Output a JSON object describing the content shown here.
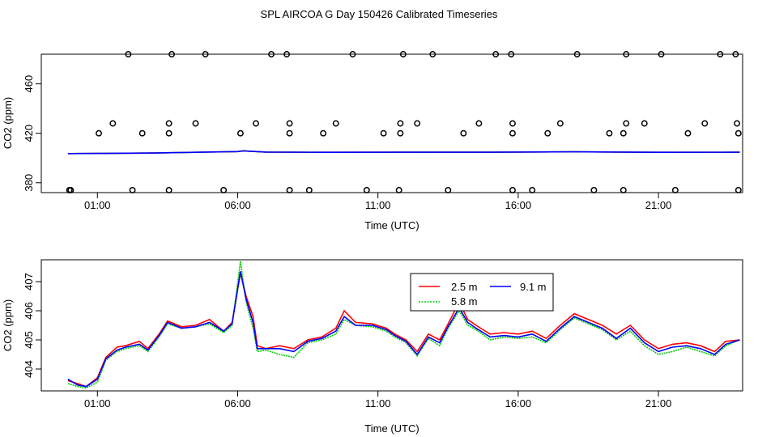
{
  "title": "SPL AIRCOA G  Day 150426  Calibrated Timeseries",
  "colors": {
    "axis": "#000000",
    "red": "#ff0000",
    "green": "#00cc00",
    "blue": "#0000ff"
  },
  "chart_data": [
    {
      "type": "scatter",
      "xlabel": "Time (UTC)",
      "ylabel": "CO2 (ppm)",
      "x_ticks": [
        "01:00",
        "06:00",
        "11:00",
        "16:00",
        "21:00"
      ],
      "x_tick_hours": [
        1,
        6,
        11,
        16,
        21
      ],
      "xlim": [
        -1.0,
        24.0
      ],
      "y_ticks": [
        380,
        420,
        460
      ],
      "ylim": [
        372,
        484
      ],
      "circles": [
        [
          0.0,
          374
        ],
        [
          0.05,
          374
        ],
        [
          1.05,
          420
        ],
        [
          1.55,
          428
        ],
        [
          2.1,
          484
        ],
        [
          2.25,
          374
        ],
        [
          2.6,
          420
        ],
        [
          3.55,
          428
        ],
        [
          3.55,
          420
        ],
        [
          3.55,
          374
        ],
        [
          3.65,
          484
        ],
        [
          4.5,
          428
        ],
        [
          4.85,
          484
        ],
        [
          5.5,
          374
        ],
        [
          6.1,
          420
        ],
        [
          6.65,
          428
        ],
        [
          7.2,
          484
        ],
        [
          7.75,
          484
        ],
        [
          7.85,
          428
        ],
        [
          7.85,
          420
        ],
        [
          7.85,
          374
        ],
        [
          8.55,
          374
        ],
        [
          9.05,
          420
        ],
        [
          9.5,
          428
        ],
        [
          10.1,
          484
        ],
        [
          10.6,
          374
        ],
        [
          11.2,
          420
        ],
        [
          11.8,
          428
        ],
        [
          11.8,
          420
        ],
        [
          11.75,
          374
        ],
        [
          11.9,
          484
        ],
        [
          12.4,
          428
        ],
        [
          12.95,
          484
        ],
        [
          13.5,
          374
        ],
        [
          14.05,
          420
        ],
        [
          14.6,
          428
        ],
        [
          15.2,
          484
        ],
        [
          15.75,
          484
        ],
        [
          15.8,
          428
        ],
        [
          15.8,
          420
        ],
        [
          15.8,
          374
        ],
        [
          16.5,
          374
        ],
        [
          17.05,
          420
        ],
        [
          17.5,
          428
        ],
        [
          18.1,
          484
        ],
        [
          18.7,
          374
        ],
        [
          19.25,
          420
        ],
        [
          19.75,
          420
        ],
        [
          19.75,
          374
        ],
        [
          19.85,
          428
        ],
        [
          19.85,
          484
        ],
        [
          20.5,
          428
        ],
        [
          21.1,
          484
        ],
        [
          21.6,
          374
        ],
        [
          22.05,
          420
        ],
        [
          22.65,
          428
        ],
        [
          23.2,
          484
        ],
        [
          23.75,
          484
        ],
        [
          23.8,
          428
        ],
        [
          23.85,
          420
        ],
        [
          23.85,
          374
        ]
      ],
      "series": [
        {
          "color": "#ff0000",
          "points": [
            [
              -0.05,
              403.6
            ],
            [
              1.0,
              403.7
            ],
            [
              3.0,
              404.0
            ],
            [
              6.0,
              405.2
            ],
            [
              6.2,
              405.8
            ],
            [
              7.0,
              404.8
            ],
            [
              9.0,
              404.6
            ],
            [
              12.0,
              404.7
            ],
            [
              15.0,
              404.7
            ],
            [
              18.0,
              405.0
            ],
            [
              21.0,
              404.6
            ],
            [
              23.9,
              404.7
            ]
          ]
        },
        {
          "color": "#00cc00",
          "points": [
            [
              -0.05,
              403.6
            ],
            [
              1.0,
              403.7
            ],
            [
              3.0,
              404.0
            ],
            [
              6.0,
              405.2
            ],
            [
              6.2,
              405.8
            ],
            [
              7.0,
              404.8
            ],
            [
              9.0,
              404.6
            ],
            [
              12.0,
              404.7
            ],
            [
              15.0,
              404.7
            ],
            [
              18.0,
              405.0
            ],
            [
              21.0,
              404.6
            ],
            [
              23.9,
              404.7
            ]
          ]
        },
        {
          "color": "#0000ff",
          "points": [
            [
              -0.05,
              403.6
            ],
            [
              1.0,
              403.7
            ],
            [
              3.0,
              404.0
            ],
            [
              6.0,
              405.2
            ],
            [
              6.2,
              405.8
            ],
            [
              7.0,
              404.8
            ],
            [
              9.0,
              404.6
            ],
            [
              12.0,
              404.7
            ],
            [
              15.0,
              404.7
            ],
            [
              18.0,
              405.0
            ],
            [
              21.0,
              404.6
            ],
            [
              23.9,
              404.7
            ]
          ]
        }
      ]
    },
    {
      "type": "line",
      "xlabel": "Time (UTC)",
      "ylabel": "CO2 (ppm)",
      "x_ticks": [
        "01:00",
        "06:00",
        "11:00",
        "16:00",
        "21:00"
      ],
      "x_tick_hours": [
        1,
        6,
        11,
        16,
        21
      ],
      "xlim": [
        -1.0,
        24.0
      ],
      "y_ticks": [
        404,
        405,
        406,
        407
      ],
      "ylim": [
        403.25,
        407.75
      ],
      "legend": {
        "placement": "top-center"
      },
      "series": [
        {
          "name": "2.5 m",
          "color": "#ff0000",
          "points": [
            [
              -0.05,
              403.6
            ],
            [
              0.3,
              403.5
            ],
            [
              0.6,
              403.4
            ],
            [
              1.0,
              403.7
            ],
            [
              1.3,
              404.4
            ],
            [
              1.7,
              404.75
            ],
            [
              2.0,
              404.8
            ],
            [
              2.5,
              404.95
            ],
            [
              2.8,
              404.7
            ],
            [
              3.2,
              405.2
            ],
            [
              3.5,
              405.65
            ],
            [
              4.0,
              405.45
            ],
            [
              4.5,
              405.5
            ],
            [
              5.0,
              405.7
            ],
            [
              5.5,
              405.3
            ],
            [
              5.8,
              405.6
            ],
            [
              6.1,
              407.3
            ],
            [
              6.3,
              406.5
            ],
            [
              6.55,
              405.8
            ],
            [
              6.7,
              404.8
            ],
            [
              7.0,
              404.7
            ],
            [
              7.5,
              404.8
            ],
            [
              8.0,
              404.7
            ],
            [
              8.5,
              405.0
            ],
            [
              9.0,
              405.1
            ],
            [
              9.5,
              405.4
            ],
            [
              9.8,
              406.0
            ],
            [
              10.2,
              405.6
            ],
            [
              10.8,
              405.55
            ],
            [
              11.3,
              405.4
            ],
            [
              11.6,
              405.2
            ],
            [
              12.0,
              405.0
            ],
            [
              12.4,
              404.6
            ],
            [
              12.8,
              405.2
            ],
            [
              13.2,
              405.0
            ],
            [
              13.5,
              405.55
            ],
            [
              13.9,
              406.3
            ],
            [
              14.2,
              405.7
            ],
            [
              14.5,
              405.5
            ],
            [
              15.0,
              405.2
            ],
            [
              15.5,
              405.25
            ],
            [
              16.0,
              405.2
            ],
            [
              16.5,
              405.3
            ],
            [
              17.0,
              405.05
            ],
            [
              17.5,
              405.5
            ],
            [
              18.0,
              405.9
            ],
            [
              18.5,
              405.7
            ],
            [
              19.0,
              405.5
            ],
            [
              19.5,
              405.2
            ],
            [
              20.0,
              405.5
            ],
            [
              20.5,
              405.0
            ],
            [
              21.0,
              404.7
            ],
            [
              21.5,
              404.85
            ],
            [
              22.0,
              404.9
            ],
            [
              22.5,
              404.8
            ],
            [
              23.0,
              404.6
            ],
            [
              23.4,
              404.95
            ],
            [
              23.9,
              405.0
            ]
          ]
        },
        {
          "name": "5.8 m",
          "color": "#00cc00",
          "points": [
            [
              -0.05,
              403.5
            ],
            [
              0.3,
              403.4
            ],
            [
              0.6,
              403.35
            ],
            [
              1.0,
              403.55
            ],
            [
              1.3,
              404.3
            ],
            [
              1.7,
              404.6
            ],
            [
              2.0,
              404.7
            ],
            [
              2.5,
              404.8
            ],
            [
              2.8,
              404.6
            ],
            [
              3.2,
              405.1
            ],
            [
              3.5,
              405.55
            ],
            [
              4.0,
              405.4
            ],
            [
              4.5,
              405.45
            ],
            [
              5.0,
              405.55
            ],
            [
              5.5,
              405.25
            ],
            [
              5.8,
              405.5
            ],
            [
              6.1,
              407.7
            ],
            [
              6.3,
              406.3
            ],
            [
              6.55,
              405.4
            ],
            [
              6.7,
              404.6
            ],
            [
              7.0,
              404.65
            ],
            [
              7.5,
              404.5
            ],
            [
              8.0,
              404.4
            ],
            [
              8.5,
              404.9
            ],
            [
              9.0,
              405.0
            ],
            [
              9.5,
              405.2
            ],
            [
              9.8,
              405.7
            ],
            [
              10.2,
              405.5
            ],
            [
              10.8,
              405.45
            ],
            [
              11.3,
              405.3
            ],
            [
              11.6,
              405.1
            ],
            [
              12.0,
              404.9
            ],
            [
              12.4,
              404.45
            ],
            [
              12.8,
              405.05
            ],
            [
              13.2,
              404.8
            ],
            [
              13.5,
              405.4
            ],
            [
              13.9,
              406.0
            ],
            [
              14.2,
              405.5
            ],
            [
              14.5,
              405.35
            ],
            [
              15.0,
              405.0
            ],
            [
              15.5,
              405.1
            ],
            [
              16.0,
              405.05
            ],
            [
              16.5,
              405.1
            ],
            [
              17.0,
              404.9
            ],
            [
              17.5,
              405.35
            ],
            [
              18.0,
              405.75
            ],
            [
              18.5,
              405.55
            ],
            [
              19.0,
              405.35
            ],
            [
              19.5,
              405.0
            ],
            [
              20.0,
              405.3
            ],
            [
              20.5,
              404.8
            ],
            [
              21.0,
              404.5
            ],
            [
              21.5,
              404.6
            ],
            [
              22.0,
              404.75
            ],
            [
              22.5,
              404.6
            ],
            [
              23.0,
              404.45
            ],
            [
              23.4,
              404.8
            ],
            [
              23.9,
              405.0
            ]
          ]
        },
        {
          "name": "9.1 m",
          "color": "#0000ff",
          "points": [
            [
              -0.05,
              403.65
            ],
            [
              0.3,
              403.45
            ],
            [
              0.6,
              403.4
            ],
            [
              1.0,
              403.65
            ],
            [
              1.3,
              404.35
            ],
            [
              1.7,
              404.65
            ],
            [
              2.0,
              404.75
            ],
            [
              2.5,
              404.85
            ],
            [
              2.8,
              404.65
            ],
            [
              3.2,
              405.15
            ],
            [
              3.5,
              405.6
            ],
            [
              4.0,
              405.4
            ],
            [
              4.5,
              405.45
            ],
            [
              5.0,
              405.6
            ],
            [
              5.5,
              405.3
            ],
            [
              5.8,
              405.55
            ],
            [
              6.1,
              407.35
            ],
            [
              6.3,
              406.4
            ],
            [
              6.55,
              405.6
            ],
            [
              6.7,
              404.7
            ],
            [
              7.0,
              404.7
            ],
            [
              7.5,
              404.7
            ],
            [
              8.0,
              404.6
            ],
            [
              8.5,
              404.95
            ],
            [
              9.0,
              405.05
            ],
            [
              9.5,
              405.3
            ],
            [
              9.8,
              405.8
            ],
            [
              10.2,
              405.5
            ],
            [
              10.8,
              405.5
            ],
            [
              11.3,
              405.35
            ],
            [
              11.6,
              405.15
            ],
            [
              12.0,
              404.95
            ],
            [
              12.4,
              404.5
            ],
            [
              12.8,
              405.1
            ],
            [
              13.2,
              404.9
            ],
            [
              13.5,
              405.45
            ],
            [
              13.9,
              406.1
            ],
            [
              14.2,
              405.6
            ],
            [
              14.5,
              405.4
            ],
            [
              15.0,
              405.1
            ],
            [
              15.5,
              405.15
            ],
            [
              16.0,
              405.1
            ],
            [
              16.5,
              405.2
            ],
            [
              17.0,
              404.95
            ],
            [
              17.5,
              405.4
            ],
            [
              18.0,
              405.8
            ],
            [
              18.5,
              405.6
            ],
            [
              19.0,
              405.4
            ],
            [
              19.5,
              405.05
            ],
            [
              20.0,
              405.4
            ],
            [
              20.5,
              404.9
            ],
            [
              21.0,
              404.6
            ],
            [
              21.5,
              404.75
            ],
            [
              22.0,
              404.8
            ],
            [
              22.5,
              404.7
            ],
            [
              23.0,
              404.5
            ],
            [
              23.4,
              404.85
            ],
            [
              23.9,
              405.0
            ]
          ]
        }
      ]
    }
  ]
}
